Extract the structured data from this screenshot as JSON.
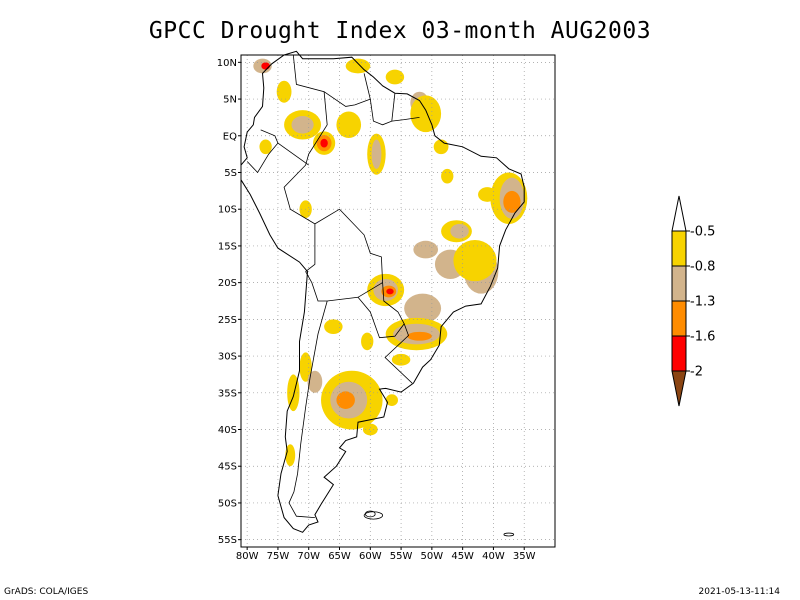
{
  "title": "GPCC Drought Index 03-month AUG2003",
  "footer": {
    "left": "GrADS: COLA/IGES",
    "right": "2021-05-13-11:14"
  },
  "map": {
    "lon_range": [
      -81,
      -30
    ],
    "lat_range": [
      -56,
      11
    ],
    "grid": true,
    "lat_ticks": [
      {
        "value": 10,
        "label": "10N"
      },
      {
        "value": 5,
        "label": "5N"
      },
      {
        "value": 0,
        "label": "EQ"
      },
      {
        "value": -5,
        "label": "5S"
      },
      {
        "value": -10,
        "label": "10S"
      },
      {
        "value": -15,
        "label": "15S"
      },
      {
        "value": -20,
        "label": "20S"
      },
      {
        "value": -25,
        "label": "25S"
      },
      {
        "value": -30,
        "label": "30S"
      },
      {
        "value": -35,
        "label": "35S"
      },
      {
        "value": -40,
        "label": "40S"
      },
      {
        "value": -45,
        "label": "45S"
      },
      {
        "value": -50,
        "label": "50S"
      },
      {
        "value": -55,
        "label": "55S"
      }
    ],
    "lon_ticks": [
      {
        "value": -80,
        "label": "80W"
      },
      {
        "value": -75,
        "label": "75W"
      },
      {
        "value": -70,
        "label": "70W"
      },
      {
        "value": -65,
        "label": "65W"
      },
      {
        "value": -60,
        "label": "60W"
      },
      {
        "value": -55,
        "label": "55W"
      },
      {
        "value": -50,
        "label": "50W"
      },
      {
        "value": -45,
        "label": "45W"
      },
      {
        "value": -40,
        "label": "40W"
      },
      {
        "value": -35,
        "label": "35W"
      }
    ]
  },
  "legend": {
    "labels": [
      "-0.5",
      "-0.8",
      "-1.3",
      "-1.6",
      "-2"
    ],
    "colors": [
      "#ffffff",
      "#f7d300",
      "#d2b48c",
      "#ff8c00",
      "#ff0000",
      "#8b4513"
    ]
  },
  "colors": {
    "yellow": "#f7d300",
    "tan": "#d2b48c",
    "orange": "#ff8c00",
    "red": "#ff0000",
    "brown": "#8b4513"
  }
}
